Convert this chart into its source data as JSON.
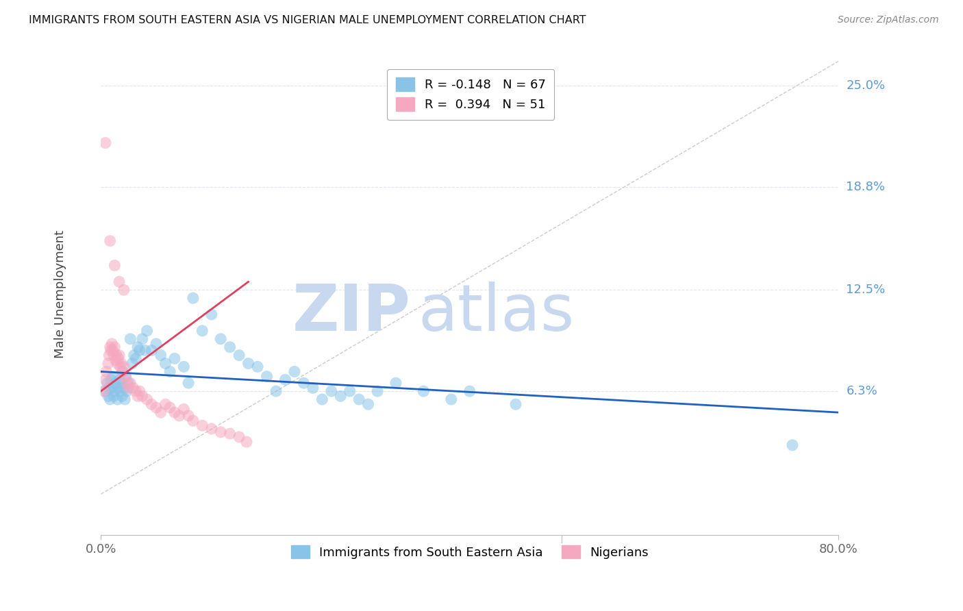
{
  "title": "IMMIGRANTS FROM SOUTH EASTERN ASIA VS NIGERIAN MALE UNEMPLOYMENT CORRELATION CHART",
  "source": "Source: ZipAtlas.com",
  "ylabel": "Male Unemployment",
  "y_tick_labels": [
    "6.3%",
    "12.5%",
    "18.8%",
    "25.0%"
  ],
  "y_values": [
    0.063,
    0.125,
    0.188,
    0.25
  ],
  "xlim": [
    0.0,
    0.8
  ],
  "ylim": [
    -0.025,
    0.27
  ],
  "watermark_zip": "ZIP",
  "watermark_atlas": "atlas",
  "scatter_blue": {
    "x": [
      0.005,
      0.007,
      0.008,
      0.009,
      0.01,
      0.011,
      0.012,
      0.013,
      0.014,
      0.015,
      0.016,
      0.018,
      0.019,
      0.02,
      0.021,
      0.022,
      0.023,
      0.024,
      0.025,
      0.026,
      0.027,
      0.028,
      0.03,
      0.032,
      0.034,
      0.036,
      0.038,
      0.04,
      0.042,
      0.045,
      0.048,
      0.05,
      0.055,
      0.06,
      0.065,
      0.07,
      0.075,
      0.08,
      0.09,
      0.095,
      0.1,
      0.11,
      0.12,
      0.13,
      0.14,
      0.15,
      0.16,
      0.17,
      0.18,
      0.19,
      0.2,
      0.21,
      0.22,
      0.23,
      0.24,
      0.25,
      0.26,
      0.27,
      0.28,
      0.29,
      0.3,
      0.32,
      0.35,
      0.38,
      0.4,
      0.45,
      0.75
    ],
    "y": [
      0.063,
      0.068,
      0.06,
      0.065,
      0.058,
      0.07,
      0.065,
      0.072,
      0.06,
      0.063,
      0.068,
      0.058,
      0.065,
      0.07,
      0.063,
      0.068,
      0.06,
      0.075,
      0.065,
      0.058,
      0.072,
      0.063,
      0.068,
      0.095,
      0.08,
      0.085,
      0.083,
      0.09,
      0.088,
      0.095,
      0.088,
      0.1,
      0.088,
      0.092,
      0.085,
      0.08,
      0.075,
      0.083,
      0.078,
      0.068,
      0.12,
      0.1,
      0.11,
      0.095,
      0.09,
      0.085,
      0.08,
      0.078,
      0.072,
      0.063,
      0.07,
      0.075,
      0.068,
      0.065,
      0.058,
      0.063,
      0.06,
      0.063,
      0.058,
      0.055,
      0.063,
      0.068,
      0.063,
      0.058,
      0.063,
      0.055,
      0.03
    ]
  },
  "scatter_pink": {
    "x": [
      0.003,
      0.005,
      0.006,
      0.008,
      0.009,
      0.01,
      0.011,
      0.012,
      0.013,
      0.014,
      0.015,
      0.016,
      0.017,
      0.018,
      0.019,
      0.02,
      0.021,
      0.022,
      0.023,
      0.025,
      0.027,
      0.028,
      0.03,
      0.032,
      0.035,
      0.038,
      0.04,
      0.042,
      0.045,
      0.05,
      0.055,
      0.06,
      0.065,
      0.07,
      0.075,
      0.08,
      0.085,
      0.09,
      0.095,
      0.1,
      0.11,
      0.12,
      0.13,
      0.14,
      0.15,
      0.158,
      0.005,
      0.01,
      0.015,
      0.02,
      0.025
    ],
    "y": [
      0.063,
      0.07,
      0.075,
      0.08,
      0.085,
      0.09,
      0.088,
      0.092,
      0.088,
      0.085,
      0.09,
      0.082,
      0.085,
      0.08,
      0.083,
      0.085,
      0.078,
      0.08,
      0.075,
      0.078,
      0.072,
      0.068,
      0.065,
      0.068,
      0.065,
      0.063,
      0.06,
      0.063,
      0.06,
      0.058,
      0.055,
      0.053,
      0.05,
      0.055,
      0.053,
      0.05,
      0.048,
      0.052,
      0.048,
      0.045,
      0.042,
      0.04,
      0.038,
      0.037,
      0.035,
      0.032,
      0.215,
      0.155,
      0.14,
      0.13,
      0.125
    ]
  },
  "trendline_blue": {
    "x": [
      0.0,
      0.8
    ],
    "y": [
      0.075,
      0.05
    ]
  },
  "trendline_pink": {
    "x": [
      0.0,
      0.16
    ],
    "y": [
      0.063,
      0.13
    ]
  },
  "diagonal_dashed": {
    "x": [
      0.0,
      0.8
    ],
    "y": [
      0.0,
      0.265
    ]
  },
  "colors": {
    "blue_scatter": "#89c4e8",
    "pink_scatter": "#f5a8c0",
    "blue_line": "#2060c0",
    "pink_line": "#e04060",
    "diagonal": "#cccccc",
    "y_tick_color": "#5b9bd5",
    "watermark_zip": "#c8d8ee",
    "watermark_atlas": "#c8d8ee",
    "grid": "#e0e5ee",
    "title": "#111111",
    "source": "#888888",
    "x_tick": "#666666",
    "legend_edge": "#aaaaaa"
  },
  "legend_top": [
    {
      "label": "R = -0.148   N = 67",
      "color": "#89c4e8"
    },
    {
      "label": "R =  0.394   N = 51",
      "color": "#f5a8c0"
    }
  ],
  "legend_bottom": [
    {
      "label": "Immigrants from South Eastern Asia",
      "color": "#89c4e8"
    },
    {
      "label": "Nigerians",
      "color": "#f5a8c0"
    }
  ]
}
